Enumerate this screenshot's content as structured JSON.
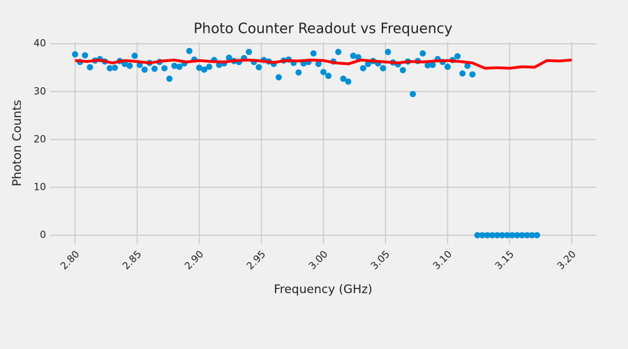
{
  "chart_data": {
    "type": "scatter",
    "title": "Photo Counter Readout vs Frequency",
    "x_label": "Frequency (GHz)",
    "y_label": "Photon Counts",
    "xlim": [
      2.78,
      3.22
    ],
    "ylim": [
      -1.9,
      40.4
    ],
    "xticks": [
      {
        "value": 2.8,
        "label": "2.80"
      },
      {
        "value": 2.85,
        "label": "2.85"
      },
      {
        "value": 2.9,
        "label": "2.90"
      },
      {
        "value": 2.95,
        "label": "2.95"
      },
      {
        "value": 3.0,
        "label": "3.00"
      },
      {
        "value": 3.05,
        "label": "3.05"
      },
      {
        "value": 3.1,
        "label": "3.10"
      },
      {
        "value": 3.15,
        "label": "3.15"
      },
      {
        "value": 3.2,
        "label": "3.20"
      }
    ],
    "yticks": [
      0,
      10,
      20,
      30,
      40
    ],
    "grid": true,
    "series": [
      {
        "type": "scatter",
        "color": "#008fd5",
        "x": [
          2.8,
          2.804,
          2.808,
          2.812,
          2.816,
          2.82,
          2.824,
          2.828,
          2.832,
          2.836,
          2.84,
          2.844,
          2.848,
          2.852,
          2.856,
          2.86,
          2.864,
          2.868,
          2.872,
          2.876,
          2.88,
          2.884,
          2.888,
          2.892,
          2.896,
          2.9,
          2.904,
          2.908,
          2.912,
          2.916,
          2.92,
          2.924,
          2.928,
          2.932,
          2.936,
          2.94,
          2.944,
          2.948,
          2.952,
          2.956,
          2.96,
          2.964,
          2.968,
          2.972,
          2.976,
          2.98,
          2.984,
          2.988,
          2.992,
          2.996,
          3.0,
          3.004,
          3.008,
          3.012,
          3.016,
          3.02,
          3.024,
          3.028,
          3.032,
          3.036,
          3.04,
          3.044,
          3.048,
          3.052,
          3.056,
          3.06,
          3.064,
          3.068,
          3.072,
          3.076,
          3.08,
          3.084,
          3.088,
          3.092,
          3.096,
          3.1,
          3.104,
          3.108,
          3.112,
          3.116,
          3.12,
          3.124,
          3.128,
          3.132,
          3.136,
          3.14,
          3.144,
          3.148,
          3.152,
          3.156,
          3.16,
          3.164,
          3.168,
          3.172
        ],
        "values": [
          37.8,
          36.2,
          37.6,
          35.1,
          36.5,
          36.8,
          36.3,
          34.9,
          35.0,
          36.4,
          35.8,
          35.4,
          37.5,
          35.6,
          34.6,
          36.0,
          34.8,
          36.2,
          34.9,
          32.7,
          35.4,
          35.2,
          35.9,
          38.5,
          36.7,
          35.0,
          34.6,
          35.2,
          36.6,
          35.6,
          35.9,
          37.1,
          36.4,
          36.2,
          37.0,
          38.3,
          36.2,
          35.1,
          36.6,
          36.3,
          35.8,
          33.0,
          36.5,
          36.7,
          36.0,
          34.0,
          35.9,
          36.2,
          38.0,
          35.8,
          34.1,
          33.3,
          36.3,
          38.3,
          32.7,
          32.1,
          37.5,
          37.2,
          34.9,
          35.8,
          36.4,
          35.9,
          34.9,
          38.3,
          36.1,
          35.7,
          34.5,
          36.3,
          29.5,
          36.4,
          38.0,
          35.5,
          35.6,
          36.8,
          36.2,
          35.2,
          36.6,
          37.4,
          33.8,
          35.4,
          33.6,
          0,
          0,
          0,
          0,
          0,
          0,
          0,
          0,
          0,
          0,
          0,
          0,
          0
        ]
      },
      {
        "type": "line",
        "color": "#ff0000",
        "x": [
          2.8,
          2.81,
          2.82,
          2.83,
          2.84,
          2.85,
          2.86,
          2.87,
          2.88,
          2.89,
          2.9,
          2.91,
          2.92,
          2.93,
          2.94,
          2.95,
          2.96,
          2.97,
          2.98,
          2.99,
          3.0,
          3.01,
          3.02,
          3.03,
          3.04,
          3.05,
          3.06,
          3.07,
          3.08,
          3.09,
          3.1,
          3.11,
          3.12,
          3.13,
          3.14,
          3.15,
          3.16,
          3.17,
          3.18,
          3.19,
          3.2
        ],
        "values": [
          36.5,
          36.3,
          36.6,
          36.0,
          36.5,
          36.3,
          36.0,
          36.4,
          36.6,
          36.2,
          36.5,
          36.3,
          36.2,
          36.5,
          36.6,
          36.4,
          36.1,
          36.5,
          36.4,
          36.6,
          36.5,
          36.0,
          35.8,
          36.6,
          36.4,
          36.2,
          36.0,
          36.3,
          36.2,
          36.4,
          36.5,
          36.3,
          36.0,
          34.9,
          35.0,
          34.9,
          35.2,
          35.1,
          36.5,
          36.4,
          36.6
        ]
      }
    ]
  }
}
